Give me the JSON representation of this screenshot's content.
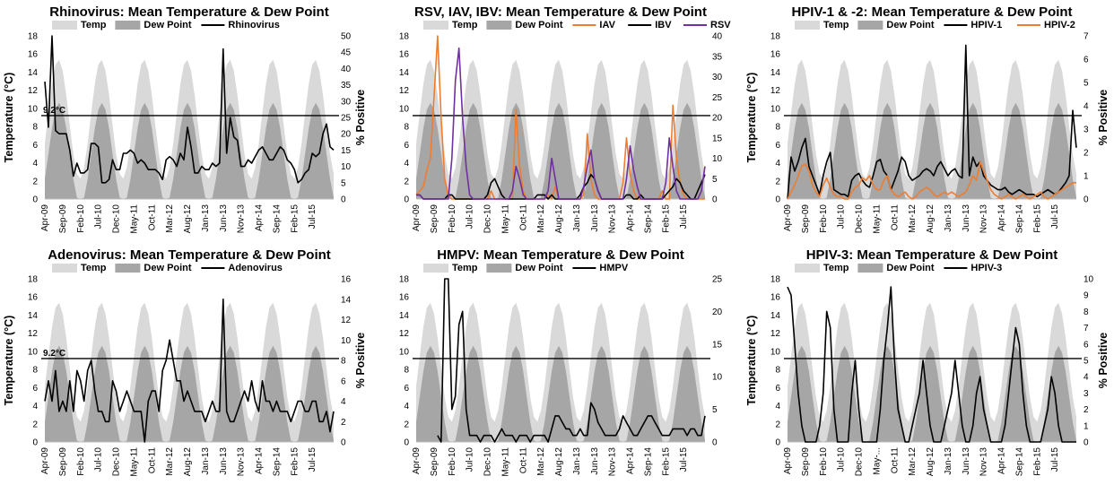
{
  "colors": {
    "temp": "#d9d9d9",
    "dew": "#a6a6a6",
    "black": "#000000",
    "orange": "#ed7d31",
    "purple": "#7030a0"
  },
  "shared": {
    "x_tick_labels": [
      "Apr-09",
      "Sep-09",
      "Feb-10",
      "Jul-10",
      "Dec-10",
      "May-11",
      "Oct-11",
      "Mar-12",
      "Aug-12",
      "Jan-13",
      "Jun-13",
      "Nov-13",
      "Apr-14",
      "Sep-14",
      "Feb-15",
      "Jul-15"
    ],
    "temp_ticks": [
      "0",
      "2",
      "4",
      "6",
      "8",
      "10",
      "12",
      "14",
      "16",
      "18"
    ]
  },
  "chart_data": [
    {
      "id": "rhino",
      "type": "area+line",
      "title": "Rhinovirus: Mean Temperature & Dew Point",
      "ylabel": "Temperature (°C)",
      "y2label": "% Positive",
      "ylim": [
        0,
        18
      ],
      "y2lim": [
        0,
        50
      ],
      "y2_ticks": [
        "0",
        "5",
        "10",
        "15",
        "20",
        "25",
        "30",
        "35",
        "40",
        "45",
        "50"
      ],
      "ref_line": 9.2,
      "ref_label": "9.2°C",
      "legend": [
        "Temp",
        "Dew Point",
        "Rhinovirus"
      ],
      "series": [
        {
          "name": "Rhinovirus",
          "color": "black",
          "values": [
            36,
            22,
            50,
            21,
            20,
            20,
            20,
            15,
            7,
            11,
            8,
            8,
            9,
            17,
            17,
            16,
            5,
            5,
            6,
            12,
            9,
            9,
            14,
            14,
            15,
            14,
            11,
            12,
            11,
            9,
            9,
            9,
            8,
            6,
            12,
            13,
            12,
            10,
            14,
            12,
            22,
            16,
            8,
            8,
            10,
            9,
            9,
            11,
            10,
            11,
            46,
            14,
            25,
            19,
            18,
            10,
            10,
            12,
            11,
            13,
            15,
            16,
            14,
            12,
            12,
            14,
            16,
            15,
            12,
            11,
            9,
            5,
            6,
            8,
            9,
            14,
            13,
            14,
            20,
            23,
            16,
            15
          ]
        }
      ]
    },
    {
      "id": "resp",
      "type": "area+line",
      "title": "RSV, IAV, IBV: Mean Temperature & Dew Point",
      "ylabel": "",
      "y2label": "",
      "ylim": [
        0,
        18
      ],
      "y2lim": [
        0,
        40
      ],
      "y2_ticks": [
        "0",
        "5",
        "10",
        "15",
        "20",
        "25",
        "30",
        "35",
        "40"
      ],
      "ref_line": 9.2,
      "ref_label": "",
      "legend": [
        "Temp",
        "Dew Point",
        "IAV",
        "IBV",
        "RSV"
      ],
      "series": [
        {
          "name": "IAV",
          "color": "orange",
          "values": [
            1,
            2,
            3,
            7,
            10,
            25,
            40,
            20,
            5,
            1,
            0,
            0,
            0,
            0,
            0,
            0,
            0,
            0,
            0,
            0,
            0,
            2,
            0,
            0,
            0,
            0,
            0,
            0,
            22,
            8,
            2,
            0,
            0,
            0,
            0,
            0,
            0,
            1,
            0,
            3,
            0,
            0,
            0,
            0,
            0,
            0,
            0,
            1,
            16,
            5,
            1,
            0,
            0,
            0,
            0,
            0,
            0,
            0,
            4,
            15,
            6,
            2,
            0,
            0,
            0,
            0,
            0,
            0,
            0,
            2,
            0,
            0,
            23,
            10,
            4,
            1,
            0,
            0,
            0,
            0,
            0,
            0
          ]
        },
        {
          "name": "IBV",
          "color": "black",
          "values": [
            1,
            1,
            0,
            0,
            0,
            0,
            0,
            0,
            0,
            1,
            1,
            0,
            0,
            0,
            0,
            0,
            0,
            0,
            0,
            0,
            1,
            4,
            5,
            3,
            1,
            0,
            0,
            0,
            0,
            0,
            0,
            0,
            0,
            0,
            1,
            1,
            1,
            0,
            1,
            0,
            0,
            0,
            0,
            0,
            0,
            0,
            1,
            3,
            4,
            6,
            5,
            2,
            0,
            0,
            0,
            0,
            0,
            0,
            0,
            1,
            1,
            0,
            0,
            1,
            0,
            0,
            0,
            0,
            0,
            0,
            1,
            2,
            3,
            5,
            4,
            2,
            1,
            0,
            0,
            2,
            4,
            6
          ]
        },
        {
          "name": "RSV",
          "color": "purple",
          "values": [
            1,
            1,
            0,
            0,
            0,
            0,
            0,
            0,
            0,
            0,
            10,
            29,
            37,
            20,
            8,
            1,
            0,
            0,
            0,
            0,
            0,
            0,
            0,
            0,
            0,
            0,
            0,
            2,
            8,
            5,
            1,
            0,
            0,
            0,
            0,
            0,
            0,
            2,
            10,
            5,
            0,
            0,
            0,
            0,
            0,
            0,
            0,
            3,
            8,
            12,
            5,
            2,
            0,
            0,
            0,
            0,
            0,
            0,
            0,
            5,
            13,
            7,
            3,
            0,
            0,
            0,
            0,
            0,
            0,
            0,
            4,
            15,
            8,
            2,
            0,
            0,
            0,
            0,
            0,
            0,
            2,
            8
          ]
        }
      ]
    },
    {
      "id": "hpiv12",
      "type": "area+line",
      "title": "HPIV-1 & -2: Mean Temperature & Dew Point",
      "ylabel": "Temperature (°C)",
      "y2label": "% Positive",
      "ylim": [
        0,
        18
      ],
      "y2lim": [
        0,
        7
      ],
      "y2_ticks": [
        "0",
        "1",
        "2",
        "3",
        "4",
        "5",
        "6",
        "7"
      ],
      "ref_line": 9.2,
      "ref_label": "",
      "legend": [
        "Temp",
        "Dew Point",
        "HPIV-1",
        "HPIV-2"
      ],
      "series": [
        {
          "name": "HPIV-1",
          "color": "black",
          "values": [
            0,
            1.8,
            1.2,
            1.6,
            2.2,
            2.6,
            1.4,
            1.0,
            0.6,
            0.2,
            1.0,
            1.6,
            2.0,
            0.4,
            0.3,
            0.2,
            0.2,
            0.1,
            0.8,
            1.0,
            1.1,
            0.8,
            0.6,
            0.5,
            1.0,
            1.6,
            1.7,
            1.2,
            1.0,
            0.4,
            0.8,
            1.2,
            1.8,
            1.6,
            1.0,
            0.8,
            0.9,
            1.0,
            1.2,
            1.3,
            1.2,
            1.0,
            1.4,
            1.6,
            1.3,
            1.0,
            1.2,
            1.3,
            1.0,
            0.9,
            6.6,
            1.0,
            1.8,
            1.4,
            1.6,
            1.0,
            0.8,
            0.6,
            0.5,
            0.4,
            0.4,
            0.5,
            0.3,
            0.2,
            0.3,
            0.4,
            0.3,
            0.2,
            0.2,
            0.2,
            0.1,
            0.2,
            0.3,
            0.4,
            0.3,
            0.2,
            0.3,
            0.5,
            0.7,
            1.0,
            3.8,
            2.2
          ]
        },
        {
          "name": "HPIV-2",
          "color": "orange",
          "values": [
            0,
            0.3,
            0.6,
            1.0,
            1.4,
            1.5,
            1.2,
            0.6,
            0.3,
            0.1,
            0.6,
            0.9,
            0.5,
            0.2,
            0.1,
            0.1,
            0.0,
            0.0,
            0.3,
            0.5,
            0.6,
            0.9,
            0.8,
            1.0,
            0.6,
            0.4,
            0.4,
            0.8,
            1.0,
            0.4,
            0.2,
            0.1,
            0.2,
            0.3,
            0.1,
            0.0,
            0.1,
            0.3,
            0.4,
            0.5,
            0.4,
            0.2,
            0.1,
            0.2,
            0.3,
            0.2,
            0.3,
            0.2,
            0.1,
            0.2,
            0.3,
            0.6,
            1.0,
            0.8,
            1.6,
            1.2,
            0.8,
            0.4,
            0.2,
            0.1,
            0.0,
            0.1,
            0.2,
            0.1,
            0.0,
            0.1,
            0.2,
            0.1,
            0.0,
            0.1,
            0.2,
            0.3,
            0.1,
            0.0,
            0.1,
            0.2,
            0.3,
            0.4,
            0.5,
            0.6,
            0.7,
            0.7
          ]
        }
      ]
    },
    {
      "id": "adeno",
      "type": "area+line",
      "title": "Adenovirus: Mean Temperature & Dew Point",
      "ylabel": "Temperature (°C)",
      "y2label": "% Positive",
      "ylim": [
        0,
        18
      ],
      "y2lim": [
        0,
        16
      ],
      "y2_ticks": [
        "0",
        "2",
        "4",
        "6",
        "8",
        "10",
        "12",
        "14",
        "16"
      ],
      "ref_line": 9.2,
      "ref_label": "9.2°C",
      "legend": [
        "Temp",
        "Dew Point",
        "Adenovirus"
      ],
      "series": [
        {
          "name": "Adenovirus",
          "color": "black",
          "values": [
            4,
            6,
            4,
            7,
            3,
            4,
            3,
            6,
            3,
            7,
            6,
            4,
            7,
            8,
            5,
            3,
            3,
            2,
            2,
            6,
            5,
            3,
            4,
            5,
            4,
            3,
            3,
            3,
            0,
            4,
            5,
            5,
            3,
            7,
            8,
            10,
            8,
            6,
            6,
            4,
            5,
            4,
            3,
            3,
            3,
            2,
            3,
            4,
            3,
            3,
            14,
            3,
            2,
            2,
            3,
            4,
            5,
            4,
            6,
            4,
            3,
            6,
            4,
            4,
            3,
            4,
            3,
            3,
            3,
            2,
            3,
            4,
            4,
            3,
            3,
            4,
            4,
            2,
            2,
            3,
            1,
            3
          ]
        }
      ]
    },
    {
      "id": "hmpv",
      "type": "area+line",
      "title": "HMPV: Mean Temperature & Dew Point",
      "ylabel": "",
      "y2label": "",
      "ylim": [
        0,
        18
      ],
      "y2lim": [
        0,
        25
      ],
      "y2_ticks": [
        "0",
        "5",
        "10",
        "15",
        "20",
        "25"
      ],
      "ref_line": 9.2,
      "ref_label": "",
      "legend": [
        "Temp",
        "Dew Point",
        "HMPV"
      ],
      "series": [
        {
          "name": "HMPV",
          "color": "black",
          "values": [
            null,
            null,
            null,
            null,
            null,
            null,
            1,
            0,
            25,
            25,
            5,
            7,
            18,
            20,
            5,
            1,
            1,
            1,
            0,
            1,
            1,
            1,
            0,
            1,
            2,
            1,
            1,
            1,
            0,
            1,
            1,
            1,
            0,
            1,
            1,
            1,
            1,
            0,
            2,
            4,
            4,
            3,
            2,
            2,
            1,
            1,
            2,
            1,
            1,
            6,
            5,
            3,
            2,
            1,
            1,
            1,
            1,
            2,
            4,
            3,
            2,
            1,
            1,
            2,
            3,
            4,
            4,
            3,
            2,
            1,
            1,
            1,
            2,
            2,
            2,
            2,
            1,
            2,
            2,
            1,
            1,
            4
          ]
        }
      ]
    },
    {
      "id": "hpiv3",
      "type": "area+line",
      "title": "HPIV-3: Mean Temperature & Dew Point",
      "ylabel": "Temperature (°C)",
      "y2label": "% Positive",
      "ylim": [
        0,
        18
      ],
      "y2lim": [
        0,
        10
      ],
      "y2_ticks": [
        "0",
        "1",
        "2",
        "3",
        "4",
        "5",
        "6",
        "7",
        "8",
        "9",
        "10"
      ],
      "ref_line": 9.2,
      "ref_label": "",
      "legend": [
        "Temp",
        "Dew Point",
        "HPIV-3"
      ],
      "series": [
        {
          "name": "HPIV-3",
          "color": "black",
          "values": [
            9.5,
            9,
            6,
            3,
            1,
            0,
            0,
            0,
            0,
            1,
            3,
            8,
            7,
            2,
            0,
            0,
            0,
            0,
            3,
            5,
            2,
            0,
            0,
            0,
            0,
            0,
            2,
            5,
            7,
            9.5,
            5,
            2,
            1,
            0,
            0,
            1,
            2,
            3,
            5,
            3,
            1,
            0,
            0,
            0,
            1,
            2,
            3,
            5,
            3,
            1,
            0,
            0,
            1,
            3,
            4,
            2,
            1,
            0,
            0,
            0,
            0,
            1,
            3,
            5,
            7,
            6,
            3,
            1,
            0,
            0,
            0,
            0,
            1,
            2,
            4,
            3,
            1,
            0,
            0,
            0,
            0,
            0
          ]
        }
      ]
    }
  ],
  "tick_label_overrides": {
    "hpiv3": {
      "5": "May-..."
    }
  }
}
